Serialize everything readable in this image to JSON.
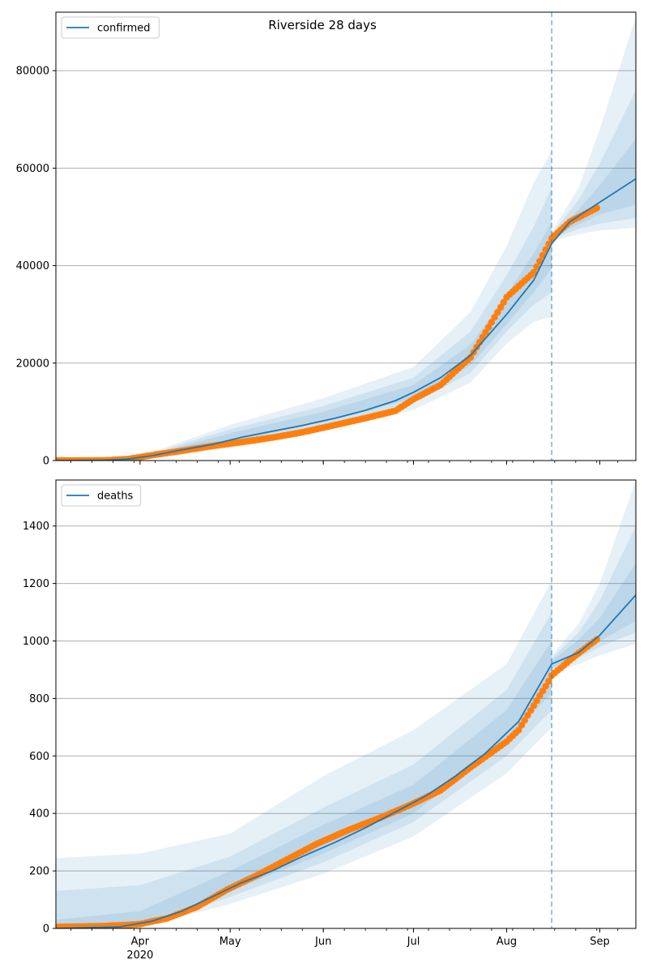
{
  "title": "Riverside 28 days",
  "x_tick_labels": [
    {
      "date": "2020-04-01",
      "label": "Apr",
      "sublabel": "2020"
    },
    {
      "date": "2020-05-01",
      "label": "May",
      "sublabel": ""
    },
    {
      "date": "2020-06-01",
      "label": "Jun",
      "sublabel": ""
    },
    {
      "date": "2020-07-01",
      "label": "Jul",
      "sublabel": ""
    },
    {
      "date": "2020-08-01",
      "label": "Aug",
      "sublabel": ""
    },
    {
      "date": "2020-09-01",
      "label": "Sep",
      "sublabel": ""
    }
  ],
  "colors": {
    "model": "#1f77b4",
    "observed": "#ff7f0e",
    "band": "#1f77b4",
    "grid": "#b0b0b0",
    "vline": "#1f77b4"
  },
  "chart_data": [
    {
      "type": "line",
      "legend": "confirmed",
      "legend_position": "top-left",
      "grid": "horizontal",
      "xlim": [
        "2020-03-04",
        "2020-09-13"
      ],
      "ylim": [
        0,
        92000
      ],
      "yticks": [
        0,
        20000,
        40000,
        60000,
        80000
      ],
      "forecast_start": "2020-08-16",
      "model": {
        "name": "confirmed",
        "points": [
          [
            "2020-03-04",
            0
          ],
          [
            "2020-03-20",
            50
          ],
          [
            "2020-03-28",
            300
          ],
          [
            "2020-04-05",
            1000
          ],
          [
            "2020-04-15",
            2200
          ],
          [
            "2020-04-25",
            3300
          ],
          [
            "2020-05-05",
            4800
          ],
          [
            "2020-05-15",
            6000
          ],
          [
            "2020-05-25",
            7200
          ],
          [
            "2020-06-05",
            8700
          ],
          [
            "2020-06-15",
            10300
          ],
          [
            "2020-06-25",
            12300
          ],
          [
            "2020-07-01",
            14000
          ],
          [
            "2020-07-10",
            17000
          ],
          [
            "2020-07-20",
            21600
          ],
          [
            "2020-08-01",
            30000
          ],
          [
            "2020-08-10",
            37000
          ],
          [
            "2020-08-16",
            44500
          ],
          [
            "2020-08-22",
            49000
          ],
          [
            "2020-09-01",
            53000
          ],
          [
            "2020-09-13",
            57800
          ]
        ]
      },
      "bands": [
        {
          "lower": [
            [
              "2020-03-04",
              0
            ],
            [
              "2020-04-01",
              350
            ],
            [
              "2020-05-01",
              2600
            ],
            [
              "2020-06-01",
              6000
            ],
            [
              "2020-07-01",
              10400
            ],
            [
              "2020-07-20",
              16000
            ],
            [
              "2020-08-01",
              24000
            ],
            [
              "2020-08-10",
              28500
            ],
            [
              "2020-08-16",
              29500
            ]
          ],
          "upper": [
            [
              "2020-03-04",
              0
            ],
            [
              "2020-04-01",
              900
            ],
            [
              "2020-05-01",
              7300
            ],
            [
              "2020-06-01",
              12800
            ],
            [
              "2020-07-01",
              19200
            ],
            [
              "2020-07-20",
              30500
            ],
            [
              "2020-08-01",
              44000
            ],
            [
              "2020-08-10",
              57000
            ],
            [
              "2020-08-16",
              63500
            ]
          ]
        },
        {
          "lower": [
            [
              "2020-03-04",
              0
            ],
            [
              "2020-04-01",
              400
            ],
            [
              "2020-05-01",
              3200
            ],
            [
              "2020-06-01",
              7000
            ],
            [
              "2020-07-01",
              11800
            ],
            [
              "2020-07-20",
              18000
            ],
            [
              "2020-08-01",
              26500
            ],
            [
              "2020-08-10",
              32000
            ],
            [
              "2020-08-16",
              34500
            ]
          ],
          "upper": [
            [
              "2020-03-04",
              0
            ],
            [
              "2020-04-01",
              750
            ],
            [
              "2020-05-01",
              6400
            ],
            [
              "2020-06-01",
              11200
            ],
            [
              "2020-07-01",
              17000
            ],
            [
              "2020-07-20",
              26500
            ],
            [
              "2020-08-01",
              38000
            ],
            [
              "2020-08-10",
              48000
            ],
            [
              "2020-08-16",
              56000
            ]
          ]
        },
        {
          "lower": [
            [
              "2020-03-04",
              0
            ],
            [
              "2020-04-01",
              450
            ],
            [
              "2020-05-01",
              3800
            ],
            [
              "2020-06-01",
              7900
            ],
            [
              "2020-07-01",
              12800
            ],
            [
              "2020-07-20",
              19600
            ],
            [
              "2020-08-01",
              28000
            ],
            [
              "2020-08-10",
              34500
            ],
            [
              "2020-08-16",
              39500
            ]
          ],
          "upper": [
            [
              "2020-03-04",
              0
            ],
            [
              "2020-04-01",
              650
            ],
            [
              "2020-05-01",
              5600
            ],
            [
              "2020-06-01",
              10000
            ],
            [
              "2020-07-01",
              15500
            ],
            [
              "2020-07-20",
              23800
            ],
            [
              "2020-08-01",
              34000
            ],
            [
              "2020-08-10",
              42500
            ],
            [
              "2020-08-16",
              49000
            ]
          ]
        },
        {
          "lower": [
            [
              "2020-08-16",
              45000
            ],
            [
              "2020-08-25",
              46500
            ],
            [
              "2020-09-01",
              47200
            ],
            [
              "2020-09-13",
              47800
            ]
          ],
          "upper": [
            [
              "2020-08-16",
              47000
            ],
            [
              "2020-08-25",
              56000
            ],
            [
              "2020-09-01",
              68000
            ],
            [
              "2020-09-13",
              91000
            ]
          ]
        },
        {
          "lower": [
            [
              "2020-08-16",
              45500
            ],
            [
              "2020-08-25",
              47500
            ],
            [
              "2020-09-01",
              48600
            ],
            [
              "2020-09-13",
              49800
            ]
          ],
          "upper": [
            [
              "2020-08-16",
              46500
            ],
            [
              "2020-08-25",
              53500
            ],
            [
              "2020-09-01",
              61000
            ],
            [
              "2020-09-13",
              76000
            ]
          ]
        },
        {
          "lower": [
            [
              "2020-08-16",
              45800
            ],
            [
              "2020-08-25",
              48500
            ],
            [
              "2020-09-01",
              50500
            ],
            [
              "2020-09-13",
              52500
            ]
          ],
          "upper": [
            [
              "2020-08-16",
              46200
            ],
            [
              "2020-08-25",
              51500
            ],
            [
              "2020-09-01",
              56500
            ],
            [
              "2020-09-13",
              66000
            ]
          ]
        }
      ],
      "observed_range": [
        "2020-03-04",
        "2020-08-31"
      ],
      "observed_anchors": [
        [
          "2020-03-04",
          0
        ],
        [
          "2020-03-20",
          30
        ],
        [
          "2020-03-28",
          300
        ],
        [
          "2020-04-05",
          1100
        ],
        [
          "2020-04-15",
          2000
        ],
        [
          "2020-04-25",
          3000
        ],
        [
          "2020-05-05",
          3800
        ],
        [
          "2020-05-15",
          4700
        ],
        [
          "2020-05-25",
          5800
        ],
        [
          "2020-06-05",
          7300
        ],
        [
          "2020-06-15",
          8700
        ],
        [
          "2020-06-25",
          10200
        ],
        [
          "2020-07-01",
          12600
        ],
        [
          "2020-07-10",
          15500
        ],
        [
          "2020-07-20",
          21200
        ],
        [
          "2020-08-01",
          33500
        ],
        [
          "2020-08-10",
          38600
        ],
        [
          "2020-08-16",
          45600
        ],
        [
          "2020-08-22",
          49000
        ],
        [
          "2020-08-31",
          51800
        ]
      ]
    },
    {
      "type": "line",
      "legend": "deaths",
      "legend_position": "top-left",
      "grid": "horizontal",
      "xlim": [
        "2020-03-04",
        "2020-09-13"
      ],
      "ylim": [
        0,
        1560
      ],
      "yticks": [
        0,
        200,
        400,
        600,
        800,
        1000,
        1200,
        1400
      ],
      "forecast_start": "2020-08-16",
      "model": {
        "name": "deaths",
        "points": [
          [
            "2020-03-04",
            0
          ],
          [
            "2020-03-25",
            5
          ],
          [
            "2020-04-05",
            25
          ],
          [
            "2020-04-15",
            60
          ],
          [
            "2020-04-25",
            110
          ],
          [
            "2020-05-05",
            160
          ],
          [
            "2020-05-15",
            200
          ],
          [
            "2020-05-25",
            250
          ],
          [
            "2020-06-05",
            300
          ],
          [
            "2020-06-15",
            350
          ],
          [
            "2020-06-25",
            405
          ],
          [
            "2020-07-05",
            460
          ],
          [
            "2020-07-15",
            530
          ],
          [
            "2020-07-25",
            610
          ],
          [
            "2020-08-05",
            720
          ],
          [
            "2020-08-16",
            920
          ],
          [
            "2020-08-25",
            960
          ],
          [
            "2020-09-01",
            1020
          ],
          [
            "2020-09-13",
            1160
          ]
        ]
      },
      "bands": [
        {
          "lower": [
            [
              "2020-03-04",
              0
            ],
            [
              "2020-04-01",
              5
            ],
            [
              "2020-05-01",
              85
            ],
            [
              "2020-06-01",
              190
            ],
            [
              "2020-07-01",
              320
            ],
            [
              "2020-08-01",
              540
            ],
            [
              "2020-08-16",
              700
            ]
          ],
          "upper": [
            [
              "2020-03-04",
              245
            ],
            [
              "2020-04-01",
              260
            ],
            [
              "2020-05-01",
              330
            ],
            [
              "2020-06-01",
              530
            ],
            [
              "2020-07-01",
              690
            ],
            [
              "2020-08-01",
              920
            ],
            [
              "2020-08-16",
              1210
            ]
          ]
        },
        {
          "lower": [
            [
              "2020-03-04",
              0
            ],
            [
              "2020-04-01",
              10
            ],
            [
              "2020-05-01",
              110
            ],
            [
              "2020-06-01",
              230
            ],
            [
              "2020-07-01",
              370
            ],
            [
              "2020-08-01",
              600
            ],
            [
              "2020-08-16",
              760
            ]
          ],
          "upper": [
            [
              "2020-03-04",
              130
            ],
            [
              "2020-04-01",
              150
            ],
            [
              "2020-05-01",
              250
            ],
            [
              "2020-06-01",
              420
            ],
            [
              "2020-07-01",
              570
            ],
            [
              "2020-08-01",
              830
            ],
            [
              "2020-08-16",
              1100
            ]
          ]
        },
        {
          "lower": [
            [
              "2020-03-04",
              0
            ],
            [
              "2020-04-01",
              15
            ],
            [
              "2020-05-01",
              130
            ],
            [
              "2020-06-01",
              260
            ],
            [
              "2020-07-01",
              400
            ],
            [
              "2020-08-01",
              650
            ],
            [
              "2020-08-16",
              820
            ]
          ],
          "upper": [
            [
              "2020-03-04",
              30
            ],
            [
              "2020-04-01",
              60
            ],
            [
              "2020-05-01",
              200
            ],
            [
              "2020-06-01",
              360
            ],
            [
              "2020-07-01",
              500
            ],
            [
              "2020-08-01",
              760
            ],
            [
              "2020-08-16",
              1000
            ]
          ]
        },
        {
          "lower": [
            [
              "2020-08-16",
              890
            ],
            [
              "2020-08-25",
              920
            ],
            [
              "2020-09-01",
              950
            ],
            [
              "2020-09-13",
              990
            ]
          ],
          "upper": [
            [
              "2020-08-16",
              950
            ],
            [
              "2020-08-25",
              1060
            ],
            [
              "2020-09-01",
              1200
            ],
            [
              "2020-09-13",
              1560
            ]
          ]
        },
        {
          "lower": [
            [
              "2020-08-16",
              900
            ],
            [
              "2020-08-25",
              940
            ],
            [
              "2020-09-01",
              980
            ],
            [
              "2020-09-13",
              1030
            ]
          ],
          "upper": [
            [
              "2020-08-16",
              940
            ],
            [
              "2020-08-25",
              1030
            ],
            [
              "2020-09-01",
              1140
            ],
            [
              "2020-09-13",
              1400
            ]
          ]
        },
        {
          "lower": [
            [
              "2020-08-16",
              905
            ],
            [
              "2020-08-25",
              955
            ],
            [
              "2020-09-01",
              1000
            ],
            [
              "2020-09-13",
              1070
            ]
          ],
          "upper": [
            [
              "2020-08-16",
              930
            ],
            [
              "2020-08-25",
              1005
            ],
            [
              "2020-09-01",
              1080
            ],
            [
              "2020-09-13",
              1270
            ]
          ]
        }
      ],
      "observed_range": [
        "2020-03-04",
        "2020-08-31"
      ],
      "observed_anchors": [
        [
          "2020-03-04",
          5
        ],
        [
          "2020-03-20",
          8
        ],
        [
          "2020-03-28",
          12
        ],
        [
          "2020-04-01",
          15
        ],
        [
          "2020-04-10",
          35
        ],
        [
          "2020-04-20",
          75
        ],
        [
          "2020-04-30",
          135
        ],
        [
          "2020-05-10",
          185
        ],
        [
          "2020-05-20",
          240
        ],
        [
          "2020-05-30",
          295
        ],
        [
          "2020-06-10",
          345
        ],
        [
          "2020-06-20",
          385
        ],
        [
          "2020-06-30",
          430
        ],
        [
          "2020-07-10",
          480
        ],
        [
          "2020-07-20",
          560
        ],
        [
          "2020-08-01",
          650
        ],
        [
          "2020-08-05",
          690
        ],
        [
          "2020-08-10",
          775
        ],
        [
          "2020-08-15",
          860
        ],
        [
          "2020-08-16",
          880
        ],
        [
          "2020-08-20",
          915
        ],
        [
          "2020-08-24",
          950
        ],
        [
          "2020-08-31",
          1005
        ]
      ]
    }
  ]
}
